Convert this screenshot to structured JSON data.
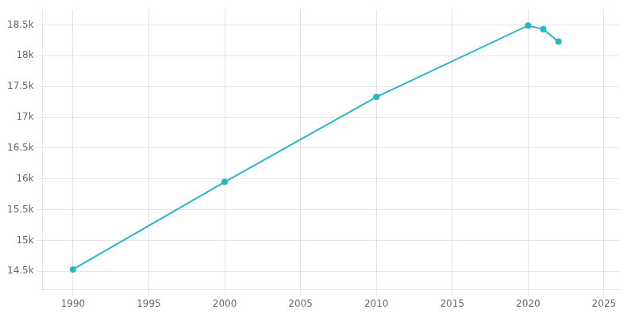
{
  "chart_data": {
    "type": "line",
    "x": [
      1990,
      2000,
      2010,
      2020,
      2021,
      2022
    ],
    "values": [
      14530,
      15950,
      17330,
      18490,
      18430,
      18230
    ],
    "color": "#29b5c5",
    "marker": "circle",
    "xlim": [
      1988,
      2026
    ],
    "xticks": [
      1990,
      1995,
      2000,
      2005,
      2010,
      2015,
      2020,
      2025
    ],
    "ylim": [
      14200,
      18750
    ],
    "yticks": [
      {
        "value": 14500,
        "label": "14.5k"
      },
      {
        "value": 15000,
        "label": "15k"
      },
      {
        "value": 15500,
        "label": "15.5k"
      },
      {
        "value": 16000,
        "label": "16k"
      },
      {
        "value": 16500,
        "label": "16.5k"
      },
      {
        "value": 17000,
        "label": "17k"
      },
      {
        "value": 17500,
        "label": "17.5k"
      },
      {
        "value": 18000,
        "label": "18k"
      },
      {
        "value": 18500,
        "label": "18.5k"
      }
    ],
    "grid": true
  }
}
